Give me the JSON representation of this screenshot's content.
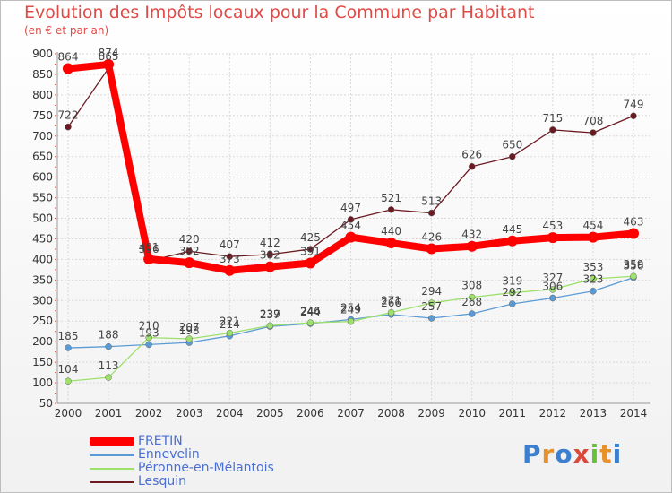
{
  "title": "Evolution des Impôts locaux pour la Commune par Habitant",
  "subtitle": "(en € et par an)",
  "logo": "Proxiti",
  "chart_data": {
    "type": "line",
    "title": "Evolution des Impôts locaux pour la Commune par Habitant",
    "subtitle": "(en € et par an)",
    "xlabel": "",
    "ylabel": "",
    "ylim": [
      50,
      900
    ],
    "y_ticks": [
      50,
      100,
      150,
      200,
      250,
      300,
      350,
      400,
      450,
      500,
      550,
      600,
      650,
      700,
      750,
      800,
      850,
      900
    ],
    "x": [
      "2000",
      "2001",
      "2002",
      "2003",
      "2004",
      "2005",
      "2006",
      "2007",
      "2008",
      "2009",
      "2010",
      "2011",
      "2012",
      "2013",
      "2014"
    ],
    "legend_position": "bottom-left",
    "grid": true,
    "series": [
      {
        "name": "FRETIN",
        "color": "#ff0000",
        "values": [
          864,
          874,
          401,
          392,
          373,
          382,
          391,
          454,
          440,
          426,
          432,
          445,
          453,
          454,
          463
        ]
      },
      {
        "name": "Ennevelin",
        "color": "#5b9bd5",
        "values": [
          185,
          188,
          193,
          198,
          214,
          237,
          244,
          254,
          266,
          257,
          268,
          292,
          306,
          323,
          356
        ]
      },
      {
        "name": "Péronne-en-Mélantois",
        "color": "#9de06b",
        "values": [
          104,
          113,
          210,
          207,
          221,
          239,
          246,
          249,
          271,
          294,
          308,
          319,
          327,
          353,
          359
        ]
      },
      {
        "name": "Lesquin",
        "color": "#6b1a22",
        "values": [
          722,
          865,
          396,
          420,
          407,
          412,
          425,
          497,
          521,
          513,
          626,
          650,
          715,
          708,
          749
        ]
      }
    ]
  }
}
